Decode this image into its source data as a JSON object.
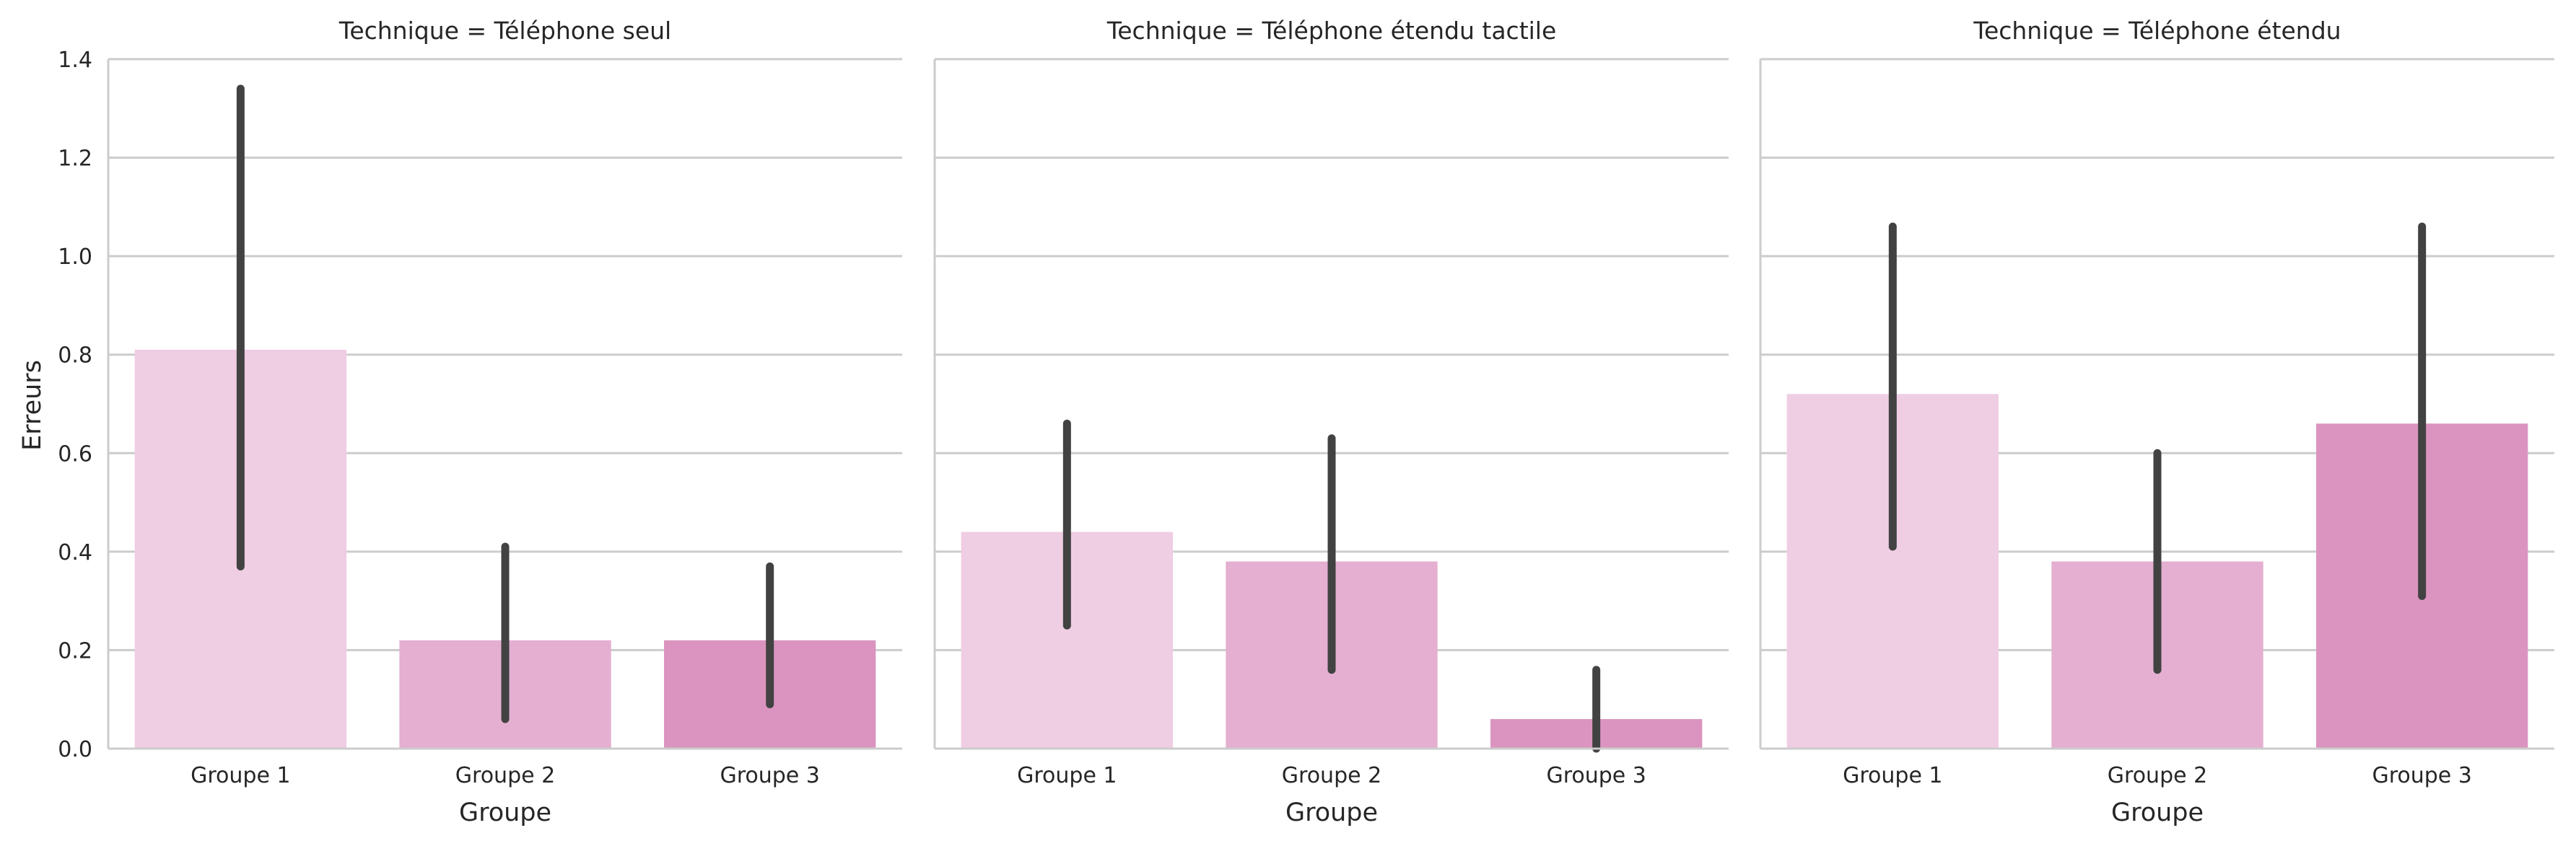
{
  "chart_data": {
    "type": "bar",
    "ylabel": "Erreurs",
    "xlabel": "Groupe",
    "ylim": [
      0,
      1.4
    ],
    "yticks": [
      "0.0",
      "0.2",
      "0.4",
      "0.6",
      "0.8",
      "1.0",
      "1.2",
      "1.4"
    ],
    "grid": "horizontal",
    "categories": [
      "Groupe 1",
      "Groupe 2",
      "Groupe 3"
    ],
    "colors": [
      "#efcde3",
      "#e4afd0",
      "#db94bf"
    ],
    "error_color": "#424242",
    "panels": [
      {
        "title": "Technique = Téléphone seul",
        "values": [
          0.81,
          0.22,
          0.22
        ],
        "ci": [
          [
            0.37,
            1.34
          ],
          [
            0.06,
            0.41
          ],
          [
            0.09,
            0.37
          ]
        ]
      },
      {
        "title": "Technique = Téléphone étendu tactile",
        "values": [
          0.44,
          0.38,
          0.06
        ],
        "ci": [
          [
            0.25,
            0.66
          ],
          [
            0.16,
            0.63
          ],
          [
            0.0,
            0.16
          ]
        ]
      },
      {
        "title": "Technique = Téléphone étendu",
        "values": [
          0.72,
          0.38,
          0.66
        ],
        "ci": [
          [
            0.41,
            1.06
          ],
          [
            0.16,
            0.6
          ],
          [
            0.31,
            1.06
          ]
        ]
      }
    ]
  }
}
